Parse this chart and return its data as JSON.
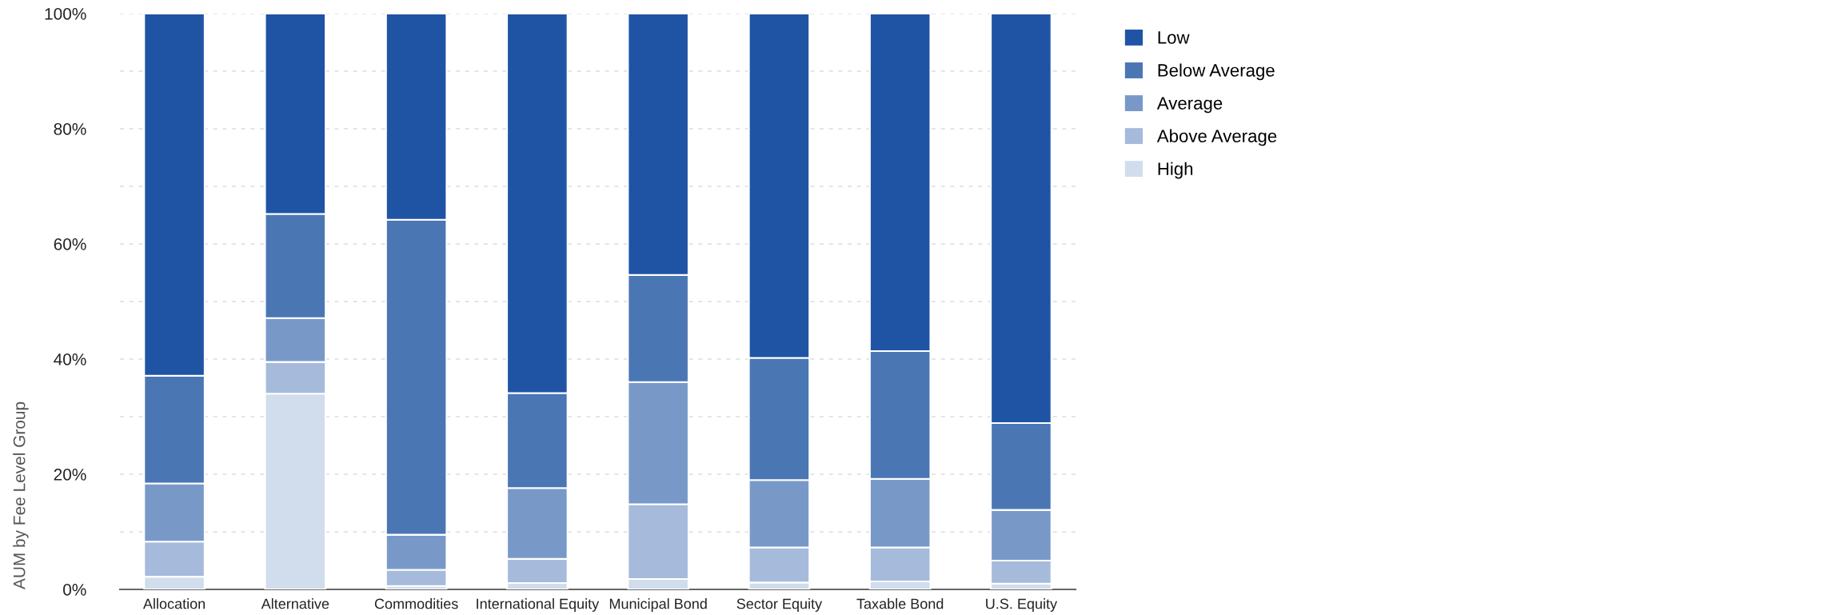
{
  "chart_data": {
    "type": "bar",
    "stacked": true,
    "ylabel": "AUM by Fee Level Group",
    "categories": [
      "Allocation",
      "Alternative",
      "Commodities",
      "International Equity",
      "Municipal Bond",
      "Sector Equity",
      "Taxable Bond",
      "U.S. Equity"
    ],
    "series": [
      {
        "name": "High",
        "color": "#d1ddec",
        "values": [
          2.2,
          34.0,
          0.6,
          1.1,
          1.8,
          1.2,
          1.4,
          1.0
        ]
      },
      {
        "name": "Above Average",
        "color": "#a6badb",
        "values": [
          6.1,
          5.5,
          2.8,
          4.2,
          13.0,
          6.1,
          5.9,
          4.0
        ]
      },
      {
        "name": "Average",
        "color": "#7899c8",
        "values": [
          10.1,
          7.6,
          6.1,
          12.3,
          21.2,
          11.7,
          11.9,
          8.8
        ]
      },
      {
        "name": "Below Average",
        "color": "#4a76b4",
        "values": [
          18.7,
          18.1,
          54.7,
          16.5,
          18.6,
          21.2,
          22.2,
          15.1
        ]
      },
      {
        "name": "Low",
        "color": "#1f54a5",
        "values": [
          62.9,
          34.8,
          35.8,
          65.9,
          45.4,
          59.8,
          58.6,
          71.1
        ]
      }
    ],
    "ylim": [
      0,
      100
    ],
    "yticks": [
      {
        "value": 0,
        "label": "0%"
      },
      {
        "value": 10,
        "label": null
      },
      {
        "value": 20,
        "label": "20%"
      },
      {
        "value": 30,
        "label": null
      },
      {
        "value": 40,
        "label": "40%"
      },
      {
        "value": 50,
        "label": null
      },
      {
        "value": 60,
        "label": "60%"
      },
      {
        "value": 70,
        "label": null
      },
      {
        "value": 80,
        "label": "80%"
      },
      {
        "value": 90,
        "label": null
      },
      {
        "value": 100,
        "label": "100%"
      }
    ],
    "grid": "y",
    "legend": "top right"
  }
}
